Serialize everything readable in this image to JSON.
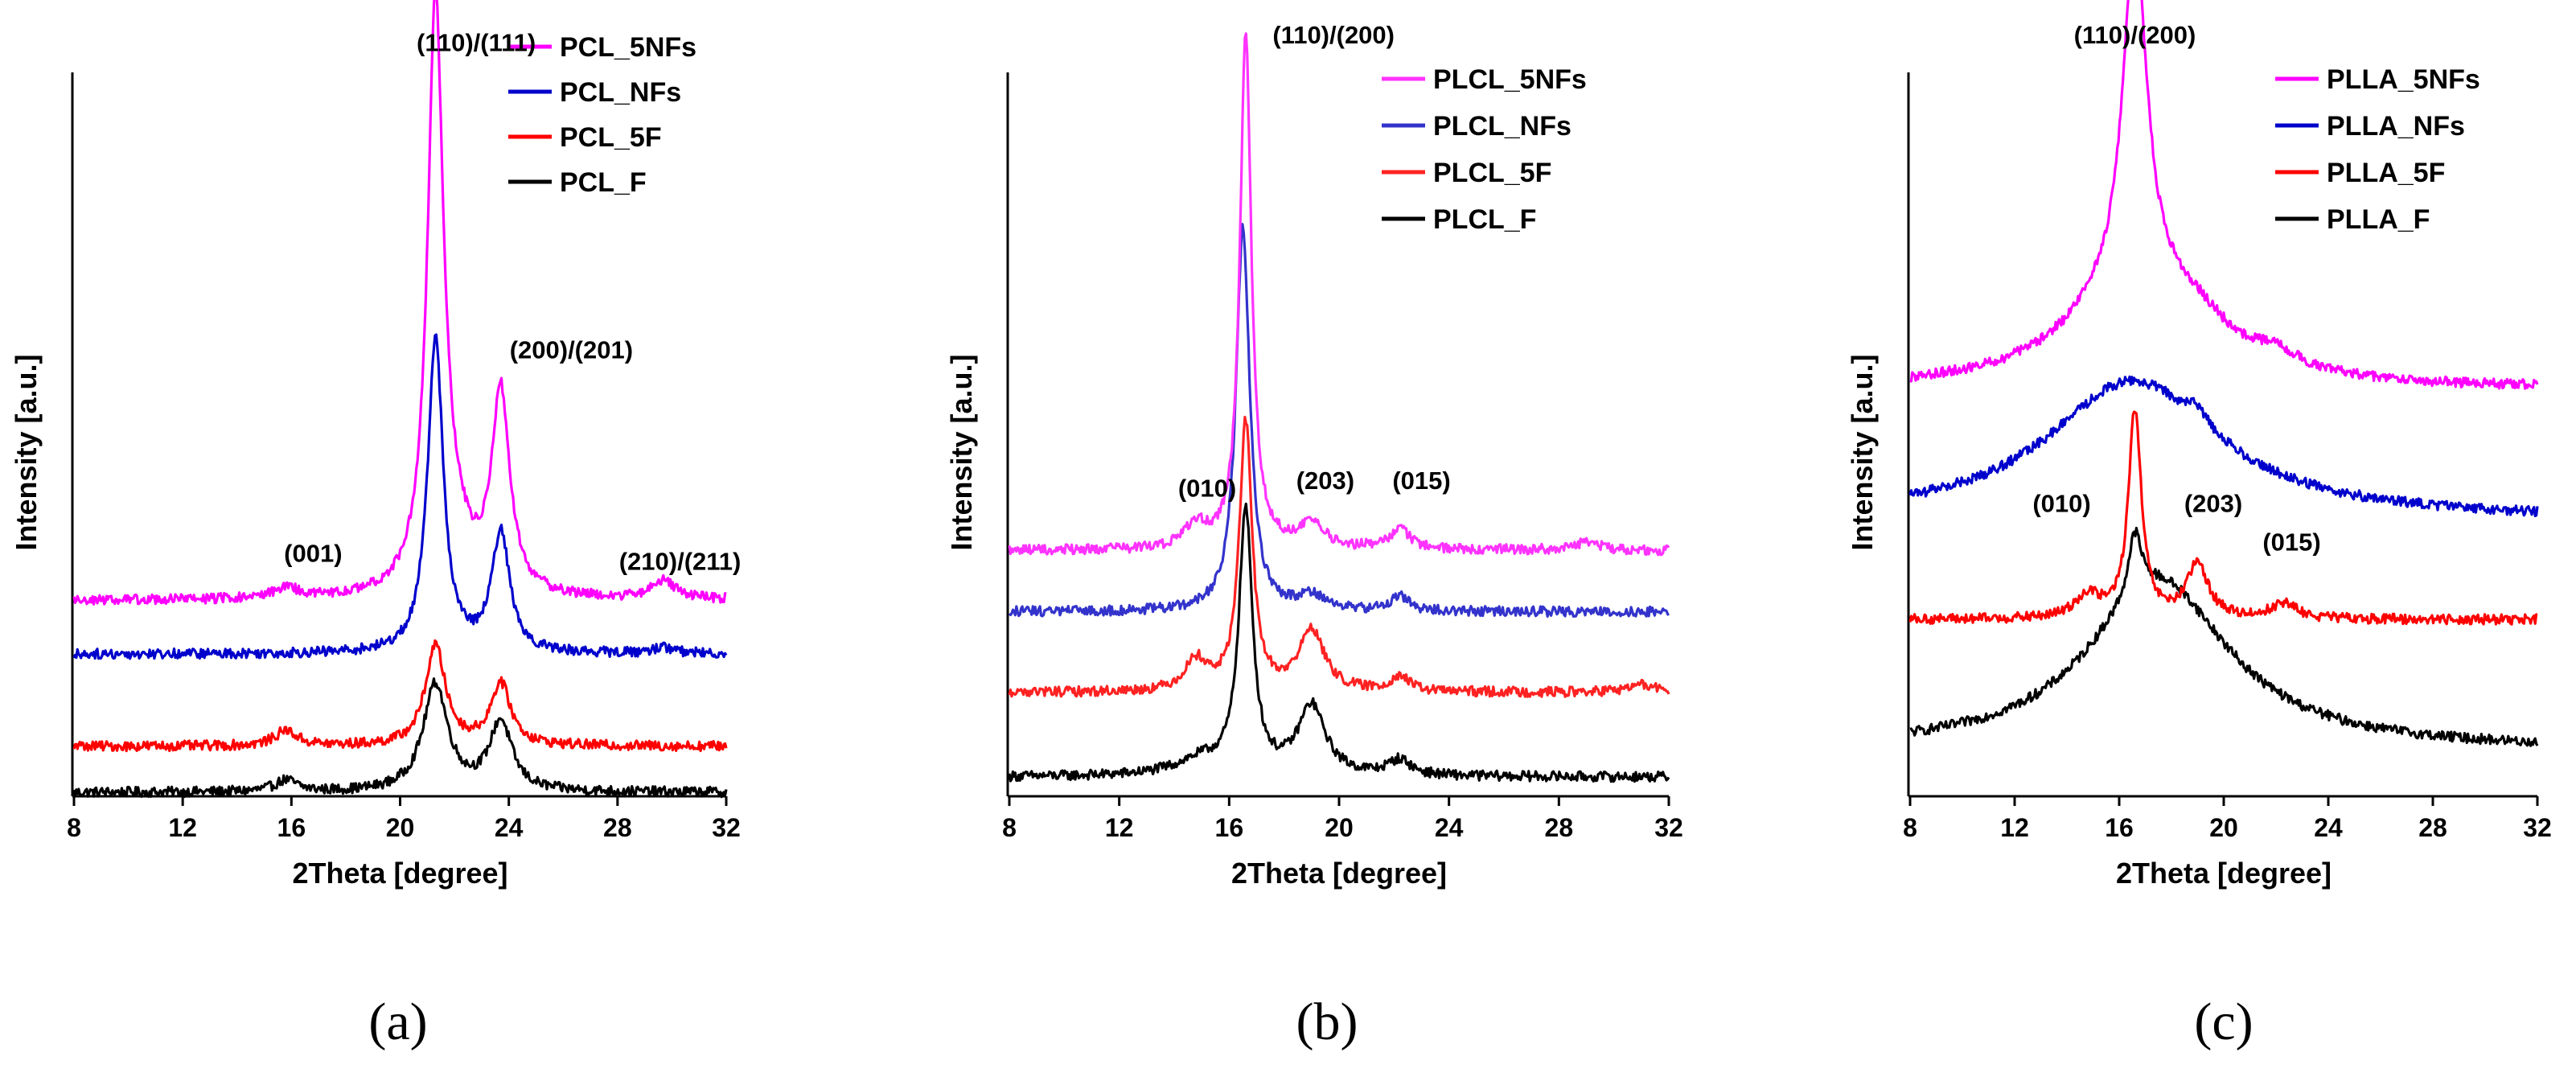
{
  "chart_data": [
    {
      "type": "line",
      "panel_label": "(a)",
      "xlabel": "2Theta [degree]",
      "ylabel": "Intensity [a.u.]",
      "xlim": [
        8,
        32
      ],
      "ylim": [
        0,
        100
      ],
      "xticks": [
        8,
        12,
        16,
        20,
        24,
        28,
        32
      ],
      "legend_position": "top-right",
      "series": [
        {
          "name": "PCL_5NFs",
          "color": "#ff00ff",
          "baseline": 25.5,
          "peaks": [
            [
              15.8,
              1.5,
              0.5
            ],
            [
              21.3,
              75,
              0.35
            ],
            [
              21.9,
              6,
              0.8
            ],
            [
              23.7,
              26,
              0.4
            ],
            [
              29.7,
              2.5,
              0.5
            ]
          ]
        },
        {
          "name": "PCL_NFs",
          "color": "#0000cc",
          "baseline": 18.5,
          "peaks": [
            [
              21.3,
              41,
              0.35
            ],
            [
              23.7,
              15.5,
              0.4
            ],
            [
              29.7,
              0.8,
              0.5
            ]
          ]
        },
        {
          "name": "PCL_5F",
          "color": "#ff0000",
          "baseline": 6.5,
          "peaks": [
            [
              15.8,
              2,
              0.5
            ],
            [
              21.3,
              13,
              0.45
            ],
            [
              23.7,
              8,
              0.45
            ]
          ]
        },
        {
          "name": "PCL_F",
          "color": "#000000",
          "baseline": 0.5,
          "peaks": [
            [
              15.8,
              1.5,
              0.5
            ],
            [
              21.3,
              14,
              0.55
            ],
            [
              23.7,
              9,
              0.5
            ]
          ]
        }
      ],
      "annotations": [
        {
          "text": "(110)/(111)",
          "x": 22.8,
          "y": 97
        },
        {
          "text": "(200)/(201)",
          "x": 26.3,
          "y": 57
        },
        {
          "text": "(001)",
          "x": 16.8,
          "y": 30.5
        },
        {
          "text": "(210)/(211)",
          "x": 30.3,
          "y": 29.5
        }
      ]
    },
    {
      "type": "line",
      "panel_label": "(b)",
      "xlabel": "2Theta [degree]",
      "ylabel": "Intensity [a.u.]",
      "xlim": [
        8,
        32
      ],
      "ylim": [
        0,
        100
      ],
      "xticks": [
        8,
        12,
        16,
        20,
        24,
        28,
        32
      ],
      "legend_position": "top-right",
      "series": [
        {
          "name": "PLCL_5NFs",
          "color": "#ff33ff",
          "baseline": 32,
          "peaks": [
            [
              14.8,
              3,
              0.5
            ],
            [
              16.6,
              67,
              0.25
            ],
            [
              19.0,
              3,
              0.6
            ],
            [
              22.2,
              2.5,
              0.5
            ],
            [
              29.0,
              1,
              0.6
            ]
          ]
        },
        {
          "name": "PLCL_NFs",
          "color": "#3333cc",
          "baseline": 24,
          "peaks": [
            [
              16.5,
              50,
              0.3
            ],
            [
              19.0,
              2,
              0.6
            ],
            [
              22.2,
              2,
              0.4
            ]
          ]
        },
        {
          "name": "PLCL_5F",
          "color": "#ff2222",
          "baseline": 13.5,
          "peaks": [
            [
              14.8,
              4,
              0.5
            ],
            [
              16.6,
              35,
              0.28
            ],
            [
              19.0,
              8,
              0.55
            ],
            [
              22.2,
              2,
              0.4
            ],
            [
              31.0,
              1,
              0.6
            ]
          ]
        },
        {
          "name": "PLCL_F",
          "color": "#000000",
          "baseline": 2.5,
          "peaks": [
            [
              15.0,
              2,
              1.2
            ],
            [
              16.6,
              34,
              0.3
            ],
            [
              19.0,
              9,
              0.6
            ],
            [
              22.2,
              2,
              0.5
            ]
          ]
        }
      ],
      "annotations": [
        {
          "text": "(110)/(200)",
          "x": 19.8,
          "y": 98
        },
        {
          "text": "(010)",
          "x": 15.2,
          "y": 39
        },
        {
          "text": "(203)",
          "x": 19.5,
          "y": 40
        },
        {
          "text": "(015)",
          "x": 23.0,
          "y": 40
        }
      ]
    },
    {
      "type": "line",
      "panel_label": "(c)",
      "xlabel": "2Theta [degree]",
      "ylabel": "Intensity [a.u.]",
      "xlim": [
        8,
        32
      ],
      "ylim": [
        0,
        100
      ],
      "xticks": [
        8,
        12,
        16,
        20,
        24,
        28,
        32
      ],
      "legend_position": "top-right",
      "series": [
        {
          "name": "PLLA_5NFs",
          "color": "#ff00ff",
          "baseline": 53,
          "peaks": [
            [
              16.6,
              13,
              3.0
            ],
            [
              16.6,
              45,
              0.55
            ],
            [
              19.0,
              3,
              1.5
            ],
            [
              22.0,
              2,
              1.0
            ]
          ]
        },
        {
          "name": "PLLA_NFs",
          "color": "#0000cc",
          "baseline": 36,
          "peaks": [
            [
              16.5,
              18,
              4.0
            ],
            [
              19.0,
              2,
              0.5
            ]
          ]
        },
        {
          "name": "PLLA_5F",
          "color": "#ff0000",
          "baseline": 23,
          "peaks": [
            [
              16.6,
              27,
              0.3
            ],
            [
              14.8,
              3,
              0.6
            ],
            [
              19.0,
              7,
              0.5
            ],
            [
              22.3,
              2,
              0.6
            ]
          ]
        },
        {
          "name": "PLLA_F",
          "color": "#000000",
          "baseline": 6,
          "peaks": [
            [
              17.5,
              22,
              3.3
            ],
            [
              16.6,
              8,
              0.3
            ]
          ]
        }
      ],
      "annotations": [
        {
          "text": "(110)/(200)",
          "x": 16.6,
          "y": 98
        },
        {
          "text": "(010)",
          "x": 13.8,
          "y": 37
        },
        {
          "text": "(203)",
          "x": 19.6,
          "y": 37
        },
        {
          "text": "(015)",
          "x": 22.6,
          "y": 32
        }
      ]
    }
  ]
}
